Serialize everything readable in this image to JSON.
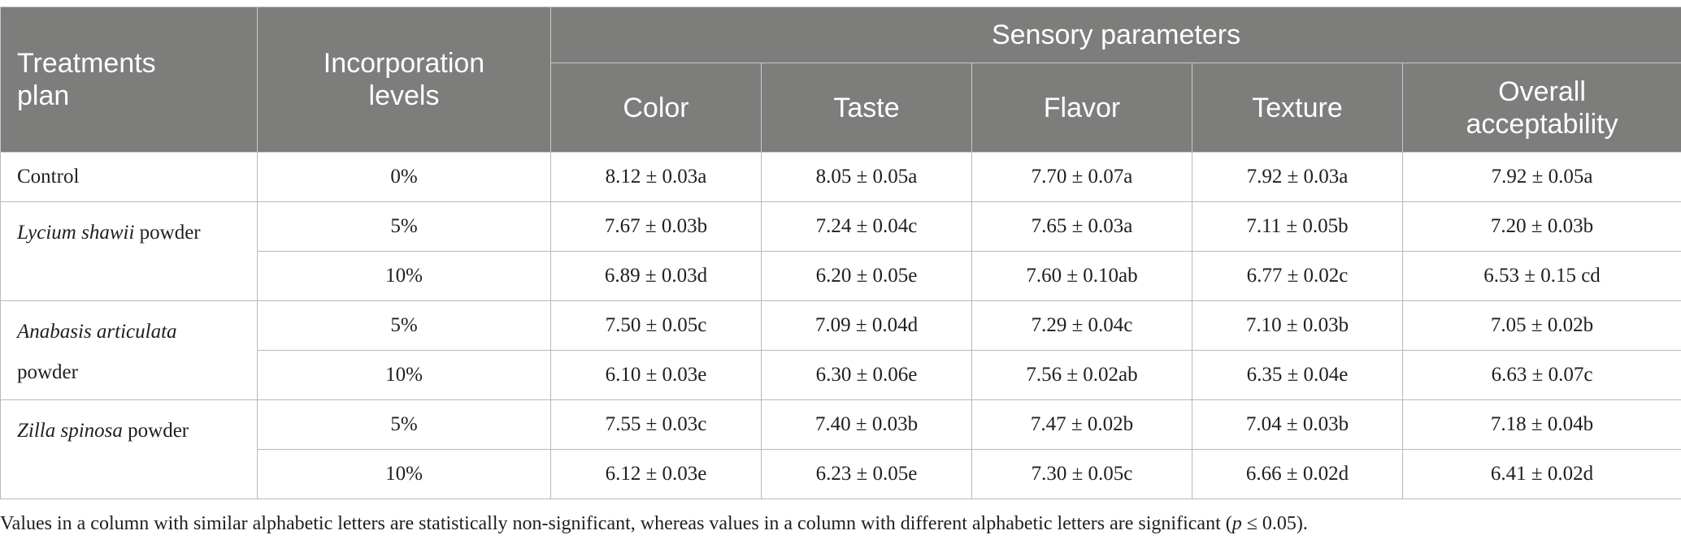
{
  "headers": {
    "treatments": [
      "Treatments",
      "plan"
    ],
    "incorporation": [
      "Incorporation",
      "levels"
    ],
    "sensory": "Sensory parameters",
    "columns": [
      "Color",
      "Taste",
      "Flavor",
      "Texture"
    ],
    "overall": [
      "Overall",
      "acceptability"
    ]
  },
  "groups": [
    {
      "name_italic": "",
      "name_suffix": "Control",
      "name_line2": ""
    },
    {
      "name_italic": "Lycium shawii",
      "name_suffix": " powder",
      "name_line2": ""
    },
    {
      "name_italic": "Anabasis articulata",
      "name_suffix": "",
      "name_line2": "powder"
    },
    {
      "name_italic": "Zilla spinosa",
      "name_suffix": " powder",
      "name_line2": ""
    }
  ],
  "rows": [
    {
      "level": "0%",
      "values": [
        "8.12 ± 0.03a",
        "8.05 ± 0.05a",
        "7.70 ± 0.07a",
        "7.92 ± 0.03a",
        "7.92 ± 0.05a"
      ]
    },
    {
      "level": "5%",
      "values": [
        "7.67 ± 0.03b",
        "7.24 ± 0.04c",
        "7.65 ± 0.03a",
        "7.11 ± 0.05b",
        "7.20 ± 0.03b"
      ]
    },
    {
      "level": "10%",
      "values": [
        "6.89 ± 0.03d",
        "6.20 ± 0.05e",
        "7.60 ± 0.10ab",
        "6.77 ± 0.02c",
        "6.53 ± 0.15 cd"
      ]
    },
    {
      "level": "5%",
      "values": [
        "7.50 ± 0.05c",
        "7.09 ± 0.04d",
        "7.29 ± 0.04c",
        "7.10 ± 0.03b",
        "7.05 ± 0.02b"
      ]
    },
    {
      "level": "10%",
      "values": [
        "6.10 ± 0.03e",
        "6.30 ± 0.06e",
        "7.56 ± 0.02ab",
        "6.35 ± 0.04e",
        "6.63 ± 0.07c"
      ]
    },
    {
      "level": "5%",
      "values": [
        "7.55 ± 0.03c",
        "7.40 ± 0.03b",
        "7.47 ± 0.02b",
        "7.04 ± 0.03b",
        "7.18 ± 0.04b"
      ]
    },
    {
      "level": "10%",
      "values": [
        "6.12 ± 0.03e",
        "6.23 ± 0.05e",
        "7.30 ± 0.05c",
        "6.66 ± 0.02d",
        "6.41 ± 0.02d"
      ]
    }
  ],
  "footnote": {
    "before": "Values in a column with similar alphabetic letters are statistically non-significant, whereas values in a column with different alphabetic letters are significant (",
    "p": "p",
    "after": " ≤ 0.05)."
  }
}
